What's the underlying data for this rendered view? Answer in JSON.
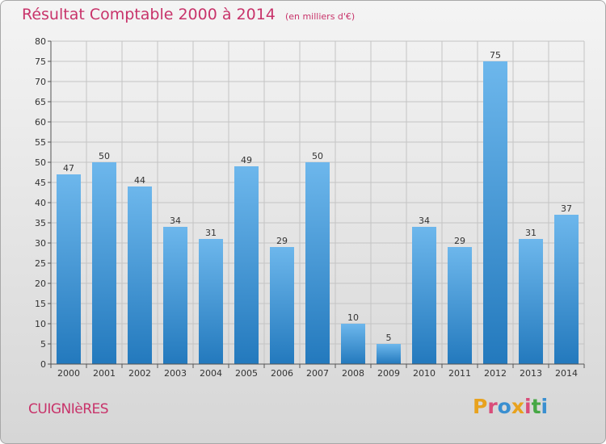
{
  "header": {
    "title": "Résultat Comptable 2000 à 2014",
    "subtitle": "(en milliers d'€)"
  },
  "footer": {
    "commune": "CUIGNIèRES",
    "brand": "Proxiti"
  },
  "colors": {
    "accent": "#c8336a",
    "bar_light": "#6db7ec",
    "bar_dark": "#2379bd",
    "background_top": "#f4f4f4",
    "background_bottom": "#d6d6d6"
  },
  "chart_data": {
    "type": "bar",
    "categories": [
      "2000",
      "2001",
      "2002",
      "2003",
      "2004",
      "2005",
      "2006",
      "2007",
      "2008",
      "2009",
      "2010",
      "2011",
      "2012",
      "2013",
      "2014"
    ],
    "values": [
      47,
      50,
      44,
      34,
      31,
      49,
      29,
      50,
      10,
      5,
      34,
      29,
      75,
      31,
      37
    ],
    "title": "Résultat Comptable 2000 à 2014",
    "ylim": [
      0,
      80
    ],
    "yticks": [
      0,
      5,
      10,
      15,
      20,
      25,
      30,
      35,
      40,
      45,
      50,
      55,
      60,
      65,
      70,
      75,
      80
    ],
    "grid": true,
    "data_labels": true
  }
}
